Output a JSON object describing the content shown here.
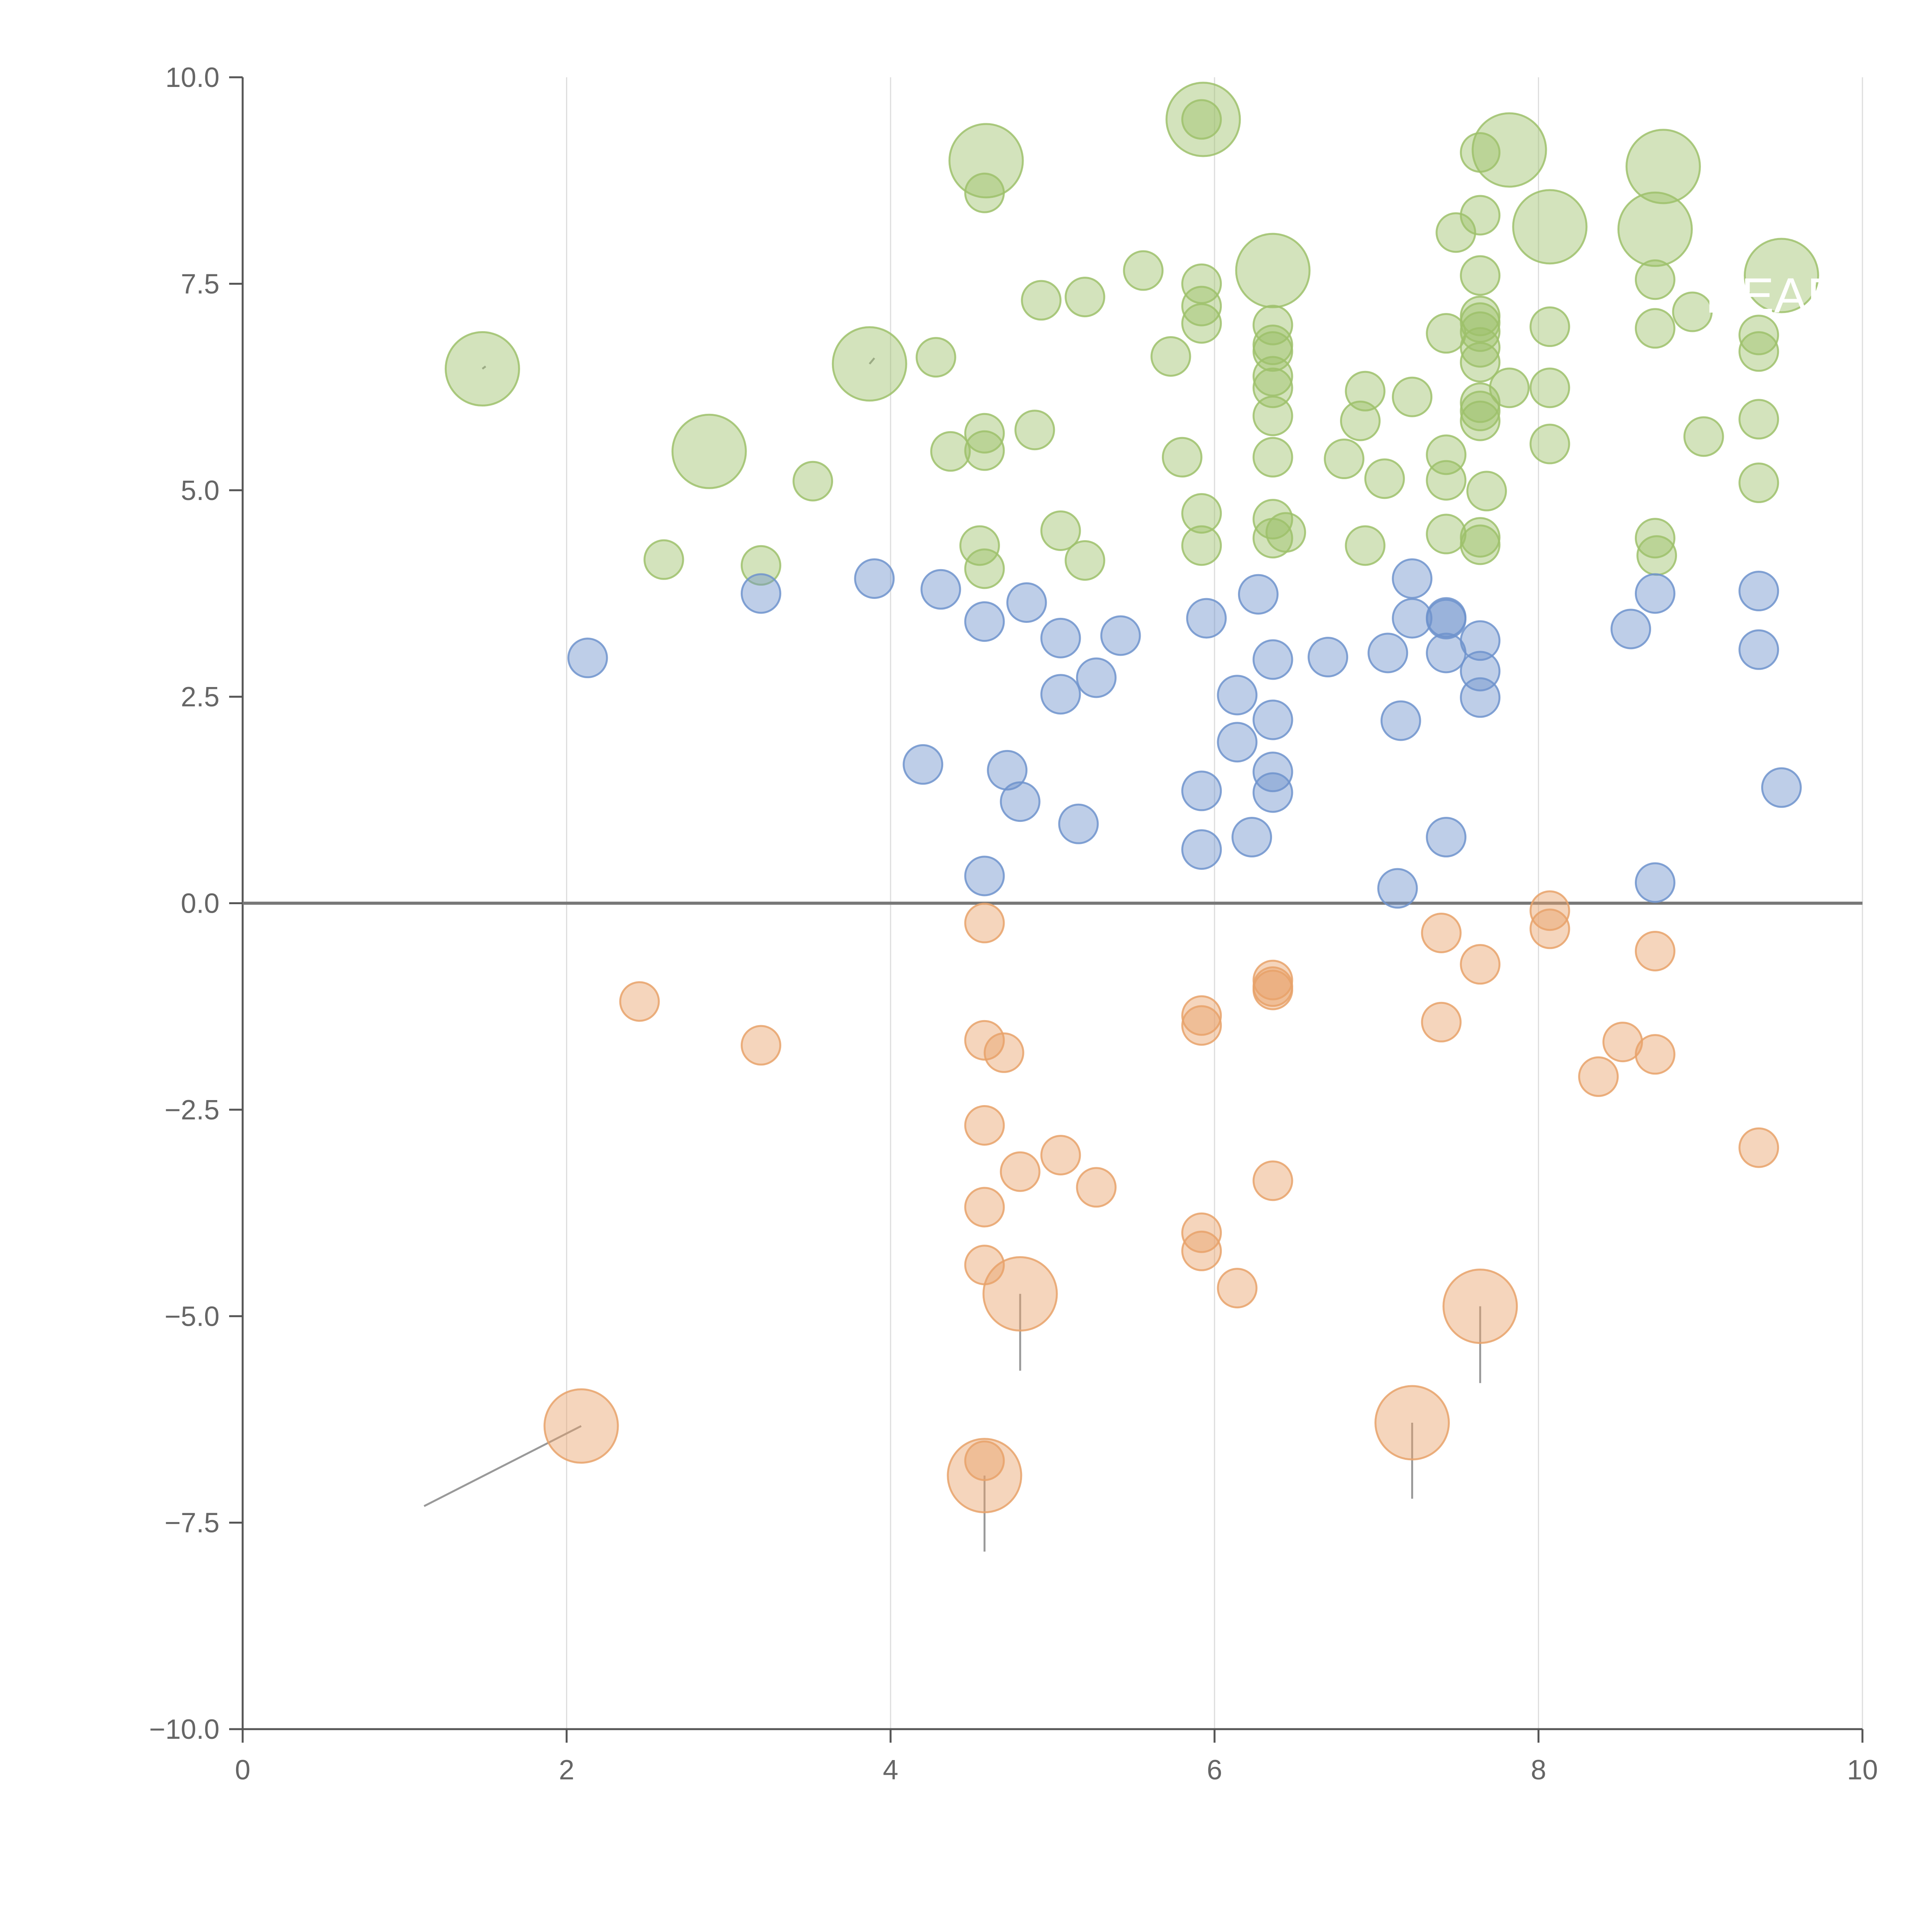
{
  "chart_data": {
    "type": "scatter",
    "title": "",
    "xlabel": "",
    "ylabel": "",
    "xlim": [
      0,
      10
    ],
    "ylim": [
      -10,
      10
    ],
    "x_ticks": [
      0,
      2,
      4,
      6,
      8,
      10
    ],
    "x_tick_labels": [
      "0",
      "2",
      "4",
      "6",
      "8",
      "10"
    ],
    "y_ticks": [
      -10,
      -7.5,
      -5,
      -2.5,
      0,
      2.5,
      5,
      7.5,
      10
    ],
    "y_tick_labels": [
      "−10.0",
      "−7.5",
      "−5.0",
      "−2.5",
      "0.0",
      "2.5",
      "5.0",
      "7.5",
      "10.0"
    ],
    "grid": {
      "vertical": true,
      "horizontal": false
    },
    "zero_line": true,
    "colors": {
      "green": "#9dc16b",
      "blue": "#6f93cc",
      "orange": "#e8a26a",
      "axis": "#555555",
      "grid": "#dddddd",
      "leader": "#999999"
    },
    "series": [
      {
        "name": "green",
        "points": [
          [
            1.48,
            6.47,
            2
          ],
          [
            2.88,
            5.47,
            2
          ],
          [
            3.87,
            6.53,
            2
          ],
          [
            4.59,
            8.99,
            2
          ],
          [
            5.93,
            9.49,
            2
          ],
          [
            6.36,
            7.66,
            2
          ],
          [
            7.82,
            9.12,
            2
          ],
          [
            8.07,
            8.19,
            2
          ],
          [
            8.77,
            8.92,
            2
          ],
          [
            8.72,
            8.16,
            2
          ],
          [
            9.5,
            7.6,
            2
          ],
          [
            2.6,
            4.16,
            1
          ],
          [
            3.2,
            4.09,
            1
          ],
          [
            3.52,
            5.11,
            1
          ],
          [
            4.28,
            6.61,
            1
          ],
          [
            4.37,
            5.47,
            1
          ],
          [
            4.55,
            4.33,
            1
          ],
          [
            4.58,
            4.05,
            1
          ],
          [
            4.58,
            5.48,
            1
          ],
          [
            4.58,
            5.69,
            1
          ],
          [
            4.58,
            8.6,
            1
          ],
          [
            4.89,
            5.73,
            1
          ],
          [
            4.93,
            7.3,
            1
          ],
          [
            5.05,
            4.51,
            1
          ],
          [
            5.2,
            7.34,
            1
          ],
          [
            5.2,
            4.15,
            1
          ],
          [
            5.56,
            7.66,
            1
          ],
          [
            5.73,
            6.62,
            1
          ],
          [
            5.8,
            5.4,
            1
          ],
          [
            5.92,
            4.33,
            1
          ],
          [
            5.92,
            4.72,
            1
          ],
          [
            5.92,
            7.02,
            1
          ],
          [
            5.92,
            7.23,
            1
          ],
          [
            5.92,
            7.5,
            1
          ],
          [
            5.92,
            9.49,
            1
          ],
          [
            6.36,
            4.42,
            1
          ],
          [
            6.36,
            4.65,
            1
          ],
          [
            6.36,
            5.4,
            1
          ],
          [
            6.36,
            5.9,
            1
          ],
          [
            6.36,
            6.24,
            1
          ],
          [
            6.36,
            6.38,
            1
          ],
          [
            6.36,
            6.68,
            1
          ],
          [
            6.36,
            6.76,
            1
          ],
          [
            6.36,
            7.0,
            1
          ],
          [
            6.44,
            4.49,
            1
          ],
          [
            6.8,
            5.38,
            1
          ],
          [
            6.9,
            5.84,
            1
          ],
          [
            6.93,
            6.2,
            1
          ],
          [
            6.93,
            4.33,
            1
          ],
          [
            7.05,
            5.14,
            1
          ],
          [
            7.22,
            6.13,
            1
          ],
          [
            7.43,
            5.43,
            1
          ],
          [
            7.43,
            5.12,
            1
          ],
          [
            7.43,
            4.47,
            1
          ],
          [
            7.43,
            6.9,
            1
          ],
          [
            7.49,
            8.12,
            1
          ],
          [
            7.64,
            4.34,
            1
          ],
          [
            7.64,
            4.43,
            1
          ],
          [
            7.64,
            5.84,
            1
          ],
          [
            7.64,
            5.96,
            1
          ],
          [
            7.64,
            6.06,
            1
          ],
          [
            7.64,
            6.55,
            1
          ],
          [
            7.64,
            6.73,
            1
          ],
          [
            7.64,
            6.92,
            1
          ],
          [
            7.64,
            7.03,
            1
          ],
          [
            7.64,
            7.11,
            1
          ],
          [
            7.64,
            7.6,
            1
          ],
          [
            7.64,
            8.33,
            1
          ],
          [
            7.64,
            9.09,
            1
          ],
          [
            7.68,
            4.99,
            1
          ],
          [
            7.82,
            6.24,
            1
          ],
          [
            8.07,
            5.56,
            1
          ],
          [
            8.07,
            6.24,
            1
          ],
          [
            8.07,
            6.98,
            1
          ],
          [
            8.72,
            4.42,
            1
          ],
          [
            8.73,
            4.21,
            1
          ],
          [
            8.72,
            6.96,
            1
          ],
          [
            8.72,
            7.55,
            1
          ],
          [
            8.95,
            7.16,
            1
          ],
          [
            9.02,
            5.65,
            1
          ],
          [
            9.36,
            5.09,
            1
          ],
          [
            9.36,
            5.86,
            1
          ],
          [
            9.36,
            6.68,
            1
          ],
          [
            9.36,
            6.88,
            1
          ]
        ]
      },
      {
        "name": "blue",
        "points": [
          [
            2.13,
            2.97,
            1
          ],
          [
            3.2,
            3.75,
            1
          ],
          [
            3.9,
            3.93,
            1
          ],
          [
            4.2,
            1.68,
            1
          ],
          [
            4.31,
            3.8,
            1
          ],
          [
            4.58,
            3.41,
            1
          ],
          [
            4.58,
            0.33,
            1
          ],
          [
            4.72,
            1.61,
            1
          ],
          [
            4.8,
            1.23,
            1
          ],
          [
            4.84,
            3.64,
            1
          ],
          [
            5.05,
            3.21,
            1
          ],
          [
            5.05,
            2.53,
            1
          ],
          [
            5.16,
            0.96,
            1
          ],
          [
            5.27,
            2.73,
            1
          ],
          [
            5.42,
            3.24,
            1
          ],
          [
            5.92,
            0.65,
            1
          ],
          [
            5.92,
            1.36,
            1
          ],
          [
            5.95,
            3.45,
            1
          ],
          [
            6.14,
            2.52,
            1
          ],
          [
            6.14,
            1.95,
            1
          ],
          [
            6.23,
            0.8,
            1
          ],
          [
            6.27,
            3.74,
            1
          ],
          [
            6.36,
            2.95,
            1
          ],
          [
            6.36,
            2.22,
            1
          ],
          [
            6.36,
            1.59,
            1
          ],
          [
            6.36,
            1.34,
            1
          ],
          [
            6.7,
            2.98,
            1
          ],
          [
            7.07,
            3.03,
            1
          ],
          [
            7.15,
            2.21,
            1
          ],
          [
            7.22,
            3.45,
            1
          ],
          [
            7.22,
            3.93,
            1
          ],
          [
            7.13,
            0.18,
            1
          ],
          [
            7.43,
            3.46,
            1
          ],
          [
            7.43,
            3.44,
            1
          ],
          [
            7.43,
            3.03,
            1
          ],
          [
            7.43,
            0.8,
            1
          ],
          [
            7.64,
            3.18,
            1
          ],
          [
            7.64,
            2.81,
            1
          ],
          [
            7.64,
            2.49,
            1
          ],
          [
            8.57,
            3.32,
            1
          ],
          [
            8.72,
            3.75,
            1
          ],
          [
            8.72,
            0.25,
            1
          ],
          [
            9.36,
            3.78,
            1
          ],
          [
            9.36,
            3.07,
            1
          ],
          [
            9.5,
            1.4,
            1
          ]
        ]
      },
      {
        "name": "orange",
        "points": [
          [
            2.09,
            -6.33,
            2
          ],
          [
            4.58,
            -6.93,
            2
          ],
          [
            4.8,
            -4.73,
            2
          ],
          [
            7.22,
            -6.29,
            2
          ],
          [
            7.64,
            -4.88,
            2
          ],
          [
            2.45,
            -1.19,
            1
          ],
          [
            3.2,
            -1.72,
            1
          ],
          [
            4.58,
            -0.24,
            1
          ],
          [
            4.58,
            -1.66,
            1
          ],
          [
            4.7,
            -1.81,
            1
          ],
          [
            4.58,
            -2.69,
            1
          ],
          [
            4.8,
            -3.25,
            1
          ],
          [
            5.05,
            -3.05,
            1
          ],
          [
            5.27,
            -3.44,
            1
          ],
          [
            4.58,
            -3.68,
            1
          ],
          [
            4.58,
            -4.38,
            1
          ],
          [
            4.58,
            -6.75,
            1
          ],
          [
            5.92,
            -1.36,
            1
          ],
          [
            5.92,
            -1.48,
            1
          ],
          [
            5.92,
            -3.99,
            1
          ],
          [
            5.92,
            -4.21,
            1
          ],
          [
            6.14,
            -4.66,
            1
          ],
          [
            6.36,
            -0.93,
            1
          ],
          [
            6.36,
            -1.01,
            1
          ],
          [
            6.36,
            -1.05,
            1
          ],
          [
            6.36,
            -3.36,
            1
          ],
          [
            7.4,
            -0.36,
            1
          ],
          [
            7.4,
            -1.44,
            1
          ],
          [
            7.64,
            -0.74,
            1
          ],
          [
            8.07,
            -0.09,
            1
          ],
          [
            8.07,
            -0.31,
            1
          ],
          [
            8.37,
            -2.1,
            1
          ],
          [
            8.52,
            -1.68,
            1
          ],
          [
            8.72,
            -0.58,
            1
          ],
          [
            8.72,
            -1.83,
            1
          ],
          [
            9.36,
            -2.96,
            1
          ]
        ]
      }
    ],
    "leader_lines": [
      [
        2.09,
        -6.33,
        1.12,
        -7.3
      ],
      [
        4.58,
        -6.93,
        4.58,
        -7.85
      ],
      [
        4.8,
        -4.73,
        4.8,
        -5.66
      ],
      [
        7.22,
        -6.29,
        7.22,
        -7.21
      ],
      [
        7.64,
        -4.88,
        7.64,
        -5.81
      ],
      [
        1.48,
        6.47,
        1.5,
        6.5
      ],
      [
        3.87,
        6.53,
        3.9,
        6.6
      ]
    ],
    "annotations": [
      {
        "text": "NEAR",
        "x": 9.03,
        "y": 7.15
      }
    ]
  }
}
